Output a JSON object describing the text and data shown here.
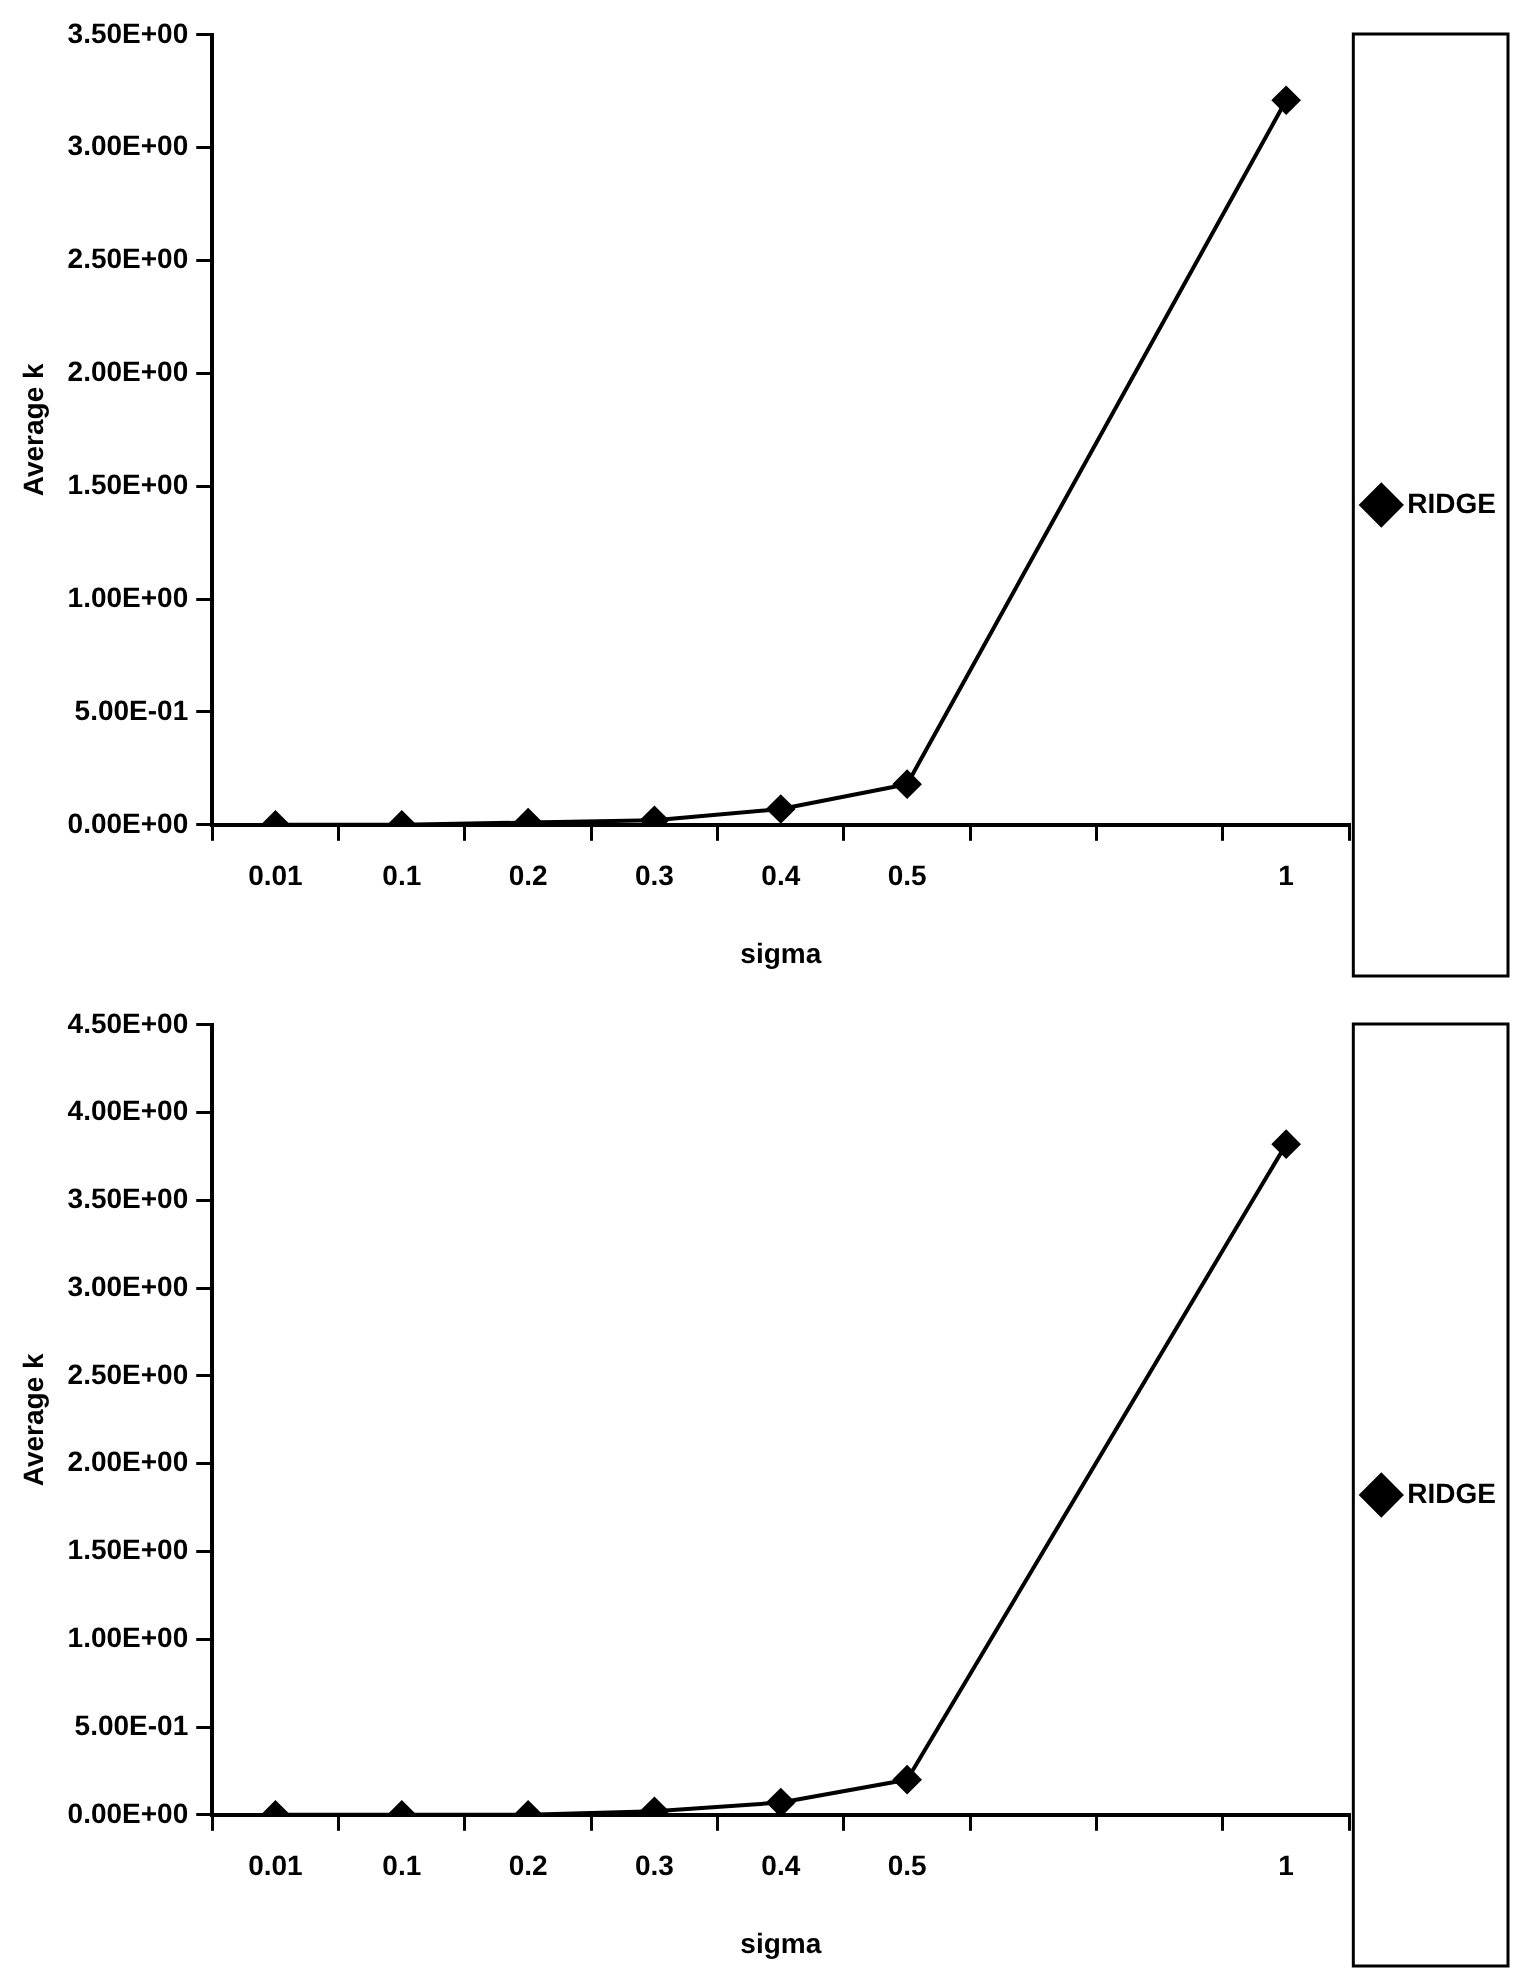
{
  "chart_data": [
    {
      "type": "line",
      "xlabel": "sigma",
      "ylabel": "Average k",
      "categories": [
        "0.01",
        "0.1",
        "0.2",
        "0.3",
        "0.4",
        "0.5",
        null,
        null,
        "1"
      ],
      "series": [
        {
          "name": "RIDGE",
          "color": "#000000",
          "values": [
            0,
            0,
            0.01,
            0.02,
            0.07,
            0.18,
            null,
            null,
            3.21
          ]
        }
      ],
      "ylim": [
        0,
        3.5
      ],
      "yticks": [
        {
          "value": 0,
          "label": "0.00E+00"
        },
        {
          "value": 0.5,
          "label": "5.00E-01"
        },
        {
          "value": 1,
          "label": "1.00E+00"
        },
        {
          "value": 1.5,
          "label": "1.50E+00"
        },
        {
          "value": 2,
          "label": "2.00E+00"
        },
        {
          "value": 2.5,
          "label": "2.50E+00"
        },
        {
          "value": 3,
          "label": "3.00E+00"
        },
        {
          "value": 3.5,
          "label": "3.50E+00"
        }
      ],
      "grid": false,
      "legend": "right",
      "marker": "diamond",
      "line_style": "solid"
    },
    {
      "type": "line",
      "xlabel": "sigma",
      "ylabel": "Average k",
      "categories": [
        "0.01",
        "0.1",
        "0.2",
        "0.3",
        "0.4",
        "0.5",
        null,
        null,
        "1"
      ],
      "series": [
        {
          "name": "RIDGE",
          "color": "#000000",
          "values": [
            0,
            0,
            0,
            0.02,
            0.07,
            0.2,
            null,
            null,
            3.82
          ]
        }
      ],
      "ylim": [
        0,
        4.5
      ],
      "yticks": [
        {
          "value": 0,
          "label": "0.00E+00"
        },
        {
          "value": 0.5,
          "label": "5.00E-01"
        },
        {
          "value": 1,
          "label": "1.00E+00"
        },
        {
          "value": 1.5,
          "label": "1.50E+00"
        },
        {
          "value": 2,
          "label": "2.00E+00"
        },
        {
          "value": 2.5,
          "label": "2.50E+00"
        },
        {
          "value": 3,
          "label": "3.00E+00"
        },
        {
          "value": 3.5,
          "label": "3.50E+00"
        },
        {
          "value": 4,
          "label": "4.00E+00"
        },
        {
          "value": 4.5,
          "label": "4.50E+00"
        }
      ],
      "grid": false,
      "legend": "right",
      "marker": "diamond",
      "line_style": "solid"
    }
  ]
}
